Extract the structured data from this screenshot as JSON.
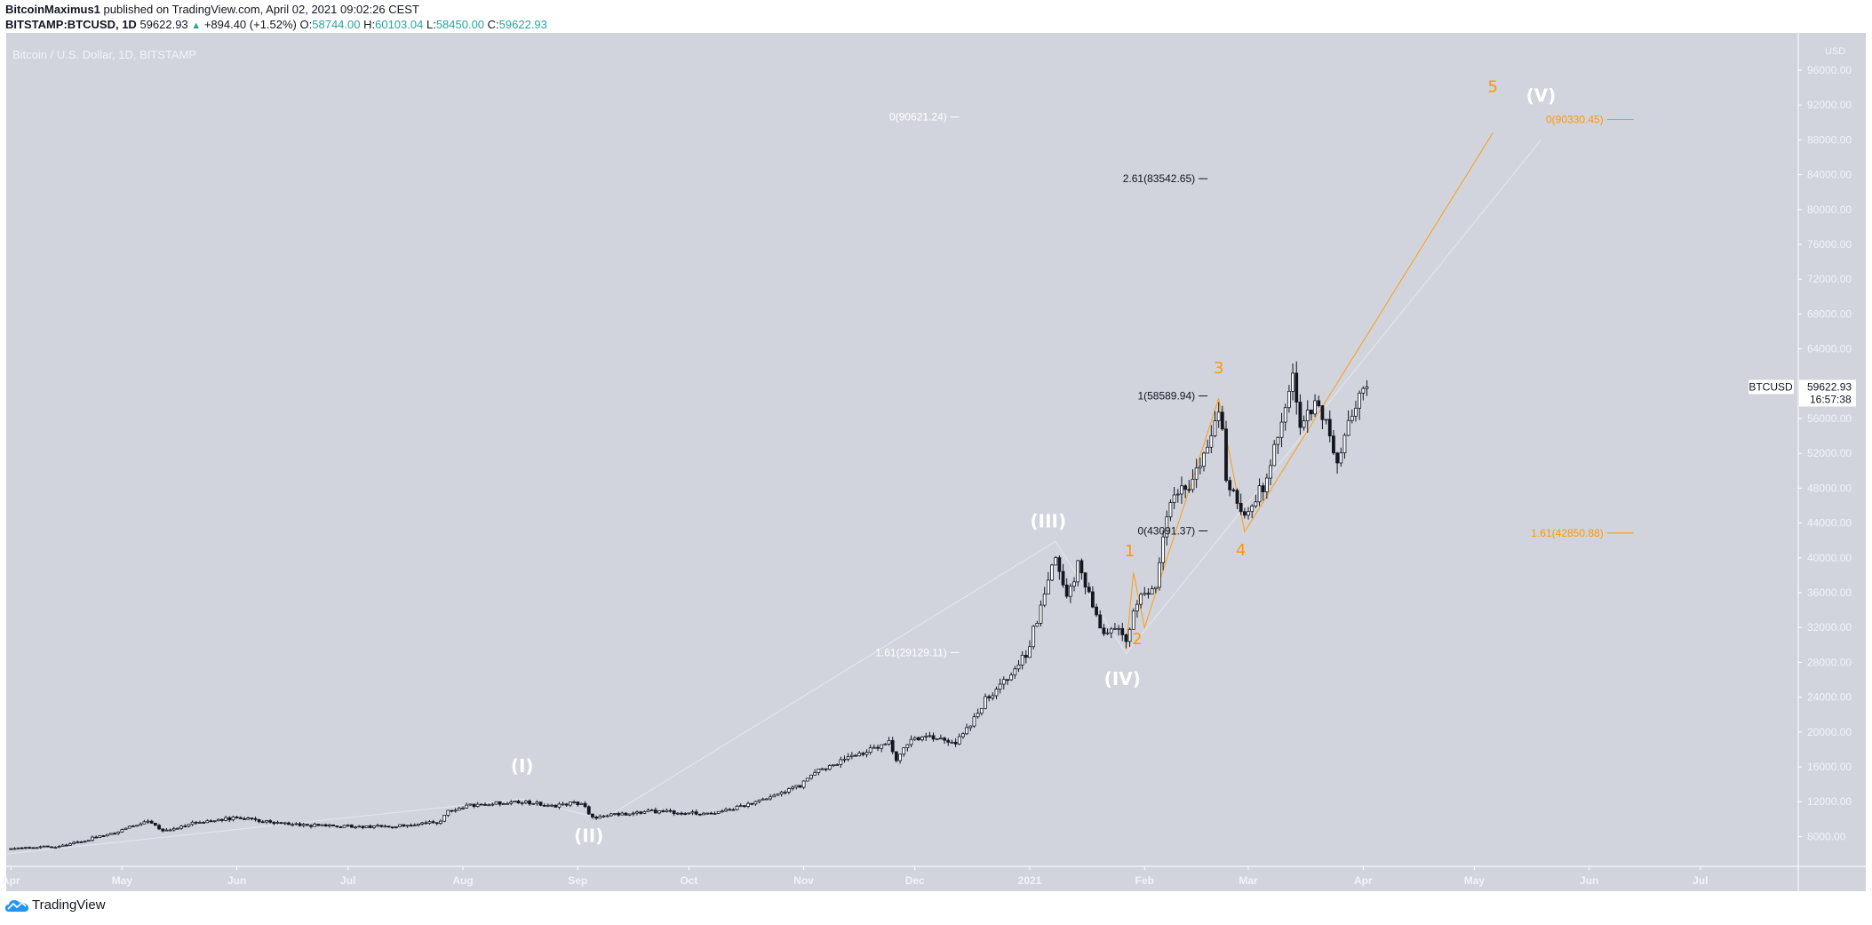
{
  "header": {
    "author": "BitcoinMaximus1",
    "published": "published on TradingView.com, April 02, 2021 09:02:26 CEST",
    "symbol": "BITSTAMP:BTCUSD, 1D",
    "last": "59622.93",
    "change": "+894.40 (+1.52%)",
    "o_label": "O:",
    "o": "58744.00",
    "h_label": "H:",
    "h": "60103.04",
    "l_label": "L:",
    "l": "58450.00",
    "c_label": "C:",
    "c": "59622.93"
  },
  "footer": {
    "brand": "TradingView"
  },
  "colors": {
    "background": "#d1d4dc",
    "up_candle": "#ffffff",
    "down_candle": "#131722",
    "orange": "#ff9800",
    "positive": "#26a69a",
    "axis_text": "#f0f3fa"
  },
  "chart_data": {
    "type": "candlestick",
    "title": "Bitcoin / U.S. Dollar, 1D, BITSTAMP",
    "ylabel": "USD",
    "ylim": [
      4000,
      98000
    ],
    "xlim": [
      "2020-03-31",
      "2021-07-29"
    ],
    "y_ticks": [
      "96000.00",
      "92000.00",
      "88000.00",
      "84000.00",
      "80000.00",
      "76000.00",
      "72000.00",
      "68000.00",
      "64000.00",
      "56000.00",
      "52000.00",
      "48000.00",
      "44000.00",
      "40000.00",
      "36000.00",
      "32000.00",
      "28000.00",
      "24000.00",
      "20000.00",
      "16000.00",
      "12000.00",
      "8000.00"
    ],
    "x_ticks": [
      {
        "date": "2020-04-01",
        "label": "Apr"
      },
      {
        "date": "2020-05-01",
        "label": "May"
      },
      {
        "date": "2020-06-01",
        "label": "Jun"
      },
      {
        "date": "2020-07-01",
        "label": "Jul"
      },
      {
        "date": "2020-08-01",
        "label": "Aug"
      },
      {
        "date": "2020-09-01",
        "label": "Sep"
      },
      {
        "date": "2020-10-01",
        "label": "Oct"
      },
      {
        "date": "2020-11-01",
        "label": "Nov"
      },
      {
        "date": "2020-12-01",
        "label": "Dec"
      },
      {
        "date": "2021-01-01",
        "label": "2021"
      },
      {
        "date": "2021-02-01",
        "label": "Feb"
      },
      {
        "date": "2021-03-01",
        "label": "Mar"
      },
      {
        "date": "2021-04-01",
        "label": "Apr"
      },
      {
        "date": "2021-05-01",
        "label": "May"
      },
      {
        "date": "2021-06-01",
        "label": "Jun"
      },
      {
        "date": "2021-07-01",
        "label": "Jul"
      }
    ],
    "grid": false,
    "last_price": {
      "symbol": "BTCUSD",
      "value": 59622.93,
      "label": "59622.93",
      "countdown": "16:57:38"
    },
    "price_path": [
      [
        "2020-04-01",
        6600
      ],
      [
        "2020-04-15",
        6900
      ],
      [
        "2020-04-30",
        8600
      ],
      [
        "2020-05-08",
        9800
      ],
      [
        "2020-05-12",
        8600
      ],
      [
        "2020-05-20",
        9500
      ],
      [
        "2020-06-01",
        10200
      ],
      [
        "2020-06-15",
        9400
      ],
      [
        "2020-06-30",
        9150
      ],
      [
        "2020-07-15",
        9200
      ],
      [
        "2020-07-26",
        9700
      ],
      [
        "2020-07-28",
        11000
      ],
      [
        "2020-08-05",
        11700
      ],
      [
        "2020-08-17",
        12000
      ],
      [
        "2020-08-25",
        11500
      ],
      [
        "2020-09-02",
        11900
      ],
      [
        "2020-09-05",
        10200
      ],
      [
        "2020-09-20",
        10900
      ],
      [
        "2020-10-08",
        10600
      ],
      [
        "2020-10-20",
        12000
      ],
      [
        "2020-10-31",
        13800
      ],
      [
        "2020-11-05",
        15600
      ],
      [
        "2020-11-17",
        17600
      ],
      [
        "2020-11-24",
        19000
      ],
      [
        "2020-11-26",
        17000
      ],
      [
        "2020-12-01",
        19500
      ],
      [
        "2020-12-12",
        18800
      ],
      [
        "2020-12-16",
        21000
      ],
      [
        "2020-12-20",
        23800
      ],
      [
        "2020-12-27",
        26500
      ],
      [
        "2020-12-31",
        29000
      ],
      [
        "2021-01-03",
        33000
      ],
      [
        "2021-01-08",
        40500
      ],
      [
        "2021-01-11",
        35000
      ],
      [
        "2021-01-14",
        39000
      ],
      [
        "2021-01-21",
        31000
      ],
      [
        "2021-01-25",
        32300
      ],
      [
        "2021-01-27",
        30400
      ],
      [
        "2021-01-29",
        34300
      ],
      [
        "2021-02-04",
        37000
      ],
      [
        "2021-02-08",
        46400
      ],
      [
        "2021-02-14",
        48700
      ],
      [
        "2021-02-17",
        52000
      ],
      [
        "2021-02-21",
        57500
      ],
      [
        "2021-02-22",
        54200
      ],
      [
        "2021-02-23",
        48800
      ],
      [
        "2021-02-26",
        46300
      ],
      [
        "2021-02-28",
        45200
      ],
      [
        "2021-03-05",
        48400
      ],
      [
        "2021-03-10",
        55800
      ],
      [
        "2021-03-13",
        61200
      ],
      [
        "2021-03-15",
        55900
      ],
      [
        "2021-03-20",
        58100
      ],
      [
        "2021-03-24",
        52800
      ],
      [
        "2021-03-25",
        51300
      ],
      [
        "2021-03-28",
        55800
      ],
      [
        "2021-04-01",
        58800
      ],
      [
        "2021-04-02",
        59622.93
      ]
    ],
    "wave_lines": [
      {
        "color": "white",
        "points": [
          [
            "2020-03-31",
            6000
          ],
          [
            "2020-08-17",
            12300
          ],
          [
            "2020-09-08",
            10000
          ],
          [
            "2021-01-08",
            41900
          ],
          [
            "2021-01-27",
            29000
          ],
          [
            "2021-05-19",
            88000
          ]
        ]
      },
      {
        "color": "orange",
        "points": [
          [
            "2021-01-27",
            29500
          ],
          [
            "2021-01-29",
            38300
          ],
          [
            "2021-02-01",
            32000
          ],
          [
            "2021-02-21",
            58300
          ],
          [
            "2021-02-28",
            43000
          ],
          [
            "2021-05-06",
            88800
          ]
        ]
      }
    ],
    "wave_labels": [
      {
        "text": "(I)",
        "date": "2020-08-17",
        "price": 15400,
        "color": "white"
      },
      {
        "text": "(II)",
        "date": "2020-09-04",
        "price": 7400,
        "color": "white"
      },
      {
        "text": "(III)",
        "date": "2021-01-06",
        "price": 43500,
        "color": "white"
      },
      {
        "text": "(IV)",
        "date": "2021-01-26",
        "price": 25400,
        "color": "white"
      },
      {
        "text": "(V)",
        "date": "2021-05-19",
        "price": 92400,
        "color": "white"
      },
      {
        "text": "1",
        "date": "2021-01-28",
        "price": 40200,
        "color": "orange"
      },
      {
        "text": "2",
        "date": "2021-01-30",
        "price": 30100,
        "color": "orange"
      },
      {
        "text": "3",
        "date": "2021-02-21",
        "price": 61200,
        "color": "orange"
      },
      {
        "text": "4",
        "date": "2021-02-27",
        "price": 40300,
        "color": "orange"
      },
      {
        "text": "5",
        "date": "2021-05-06",
        "price": 93500,
        "color": "orange"
      }
    ],
    "fib_labels": [
      {
        "text": "0(90621.24)",
        "price": 90621.24,
        "end_date": "2020-12-13",
        "color": "white"
      },
      {
        "text": "2.61(83542.65)",
        "price": 83542.65,
        "end_date": "2021-02-18",
        "color": "dark"
      },
      {
        "text": "1(58589.94)",
        "price": 58589.94,
        "end_date": "2021-02-18",
        "color": "dark"
      },
      {
        "text": "0(43091.37)",
        "price": 43091.37,
        "end_date": "2021-02-18",
        "color": "dark"
      },
      {
        "text": "1.61(29129.11)",
        "price": 29129.11,
        "end_date": "2020-12-13",
        "color": "white"
      },
      {
        "text": "0(90330.45)",
        "price": 90330.45,
        "end_date": "2021-06-13",
        "color": "orange"
      },
      {
        "text": "1.61(42850.88)",
        "price": 42850.88,
        "end_date": "2021-06-13",
        "color": "orange"
      }
    ]
  }
}
